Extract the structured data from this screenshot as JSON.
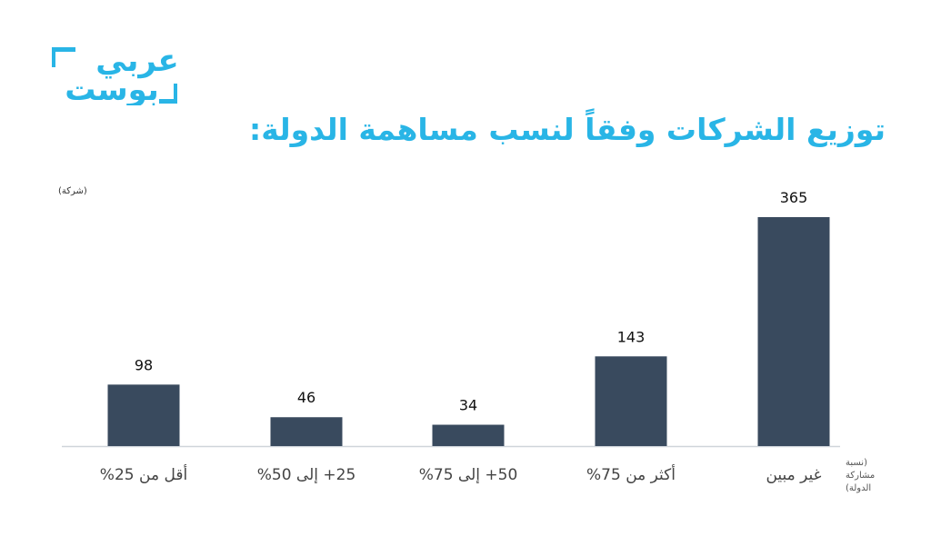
{
  "brand": {
    "logo_line1": "عربي",
    "logo_line2": "بوست",
    "color": "#29b5e6"
  },
  "title": "توزيع الشركات وفقاً لنسب مساهمة الدولة:",
  "chart_data": {
    "type": "bar",
    "title": "توزيع الشركات وفقاً لنسب مساهمة الدولة:",
    "ylabel": "(شركة)",
    "xlabel": "(نسبة مشاركة الدولة)",
    "categories": [
      "أقل من 25%",
      "25+ إلى 50%",
      "50+ إلى 75%",
      "أكثر من 75%",
      "غير مبين"
    ],
    "values": [
      98,
      46,
      34,
      143,
      365
    ],
    "data_labels": [
      "98",
      "46",
      "34",
      "143",
      "365"
    ],
    "ylim": [
      0,
      400
    ],
    "bar_color": "#394a5e",
    "grid": false
  }
}
